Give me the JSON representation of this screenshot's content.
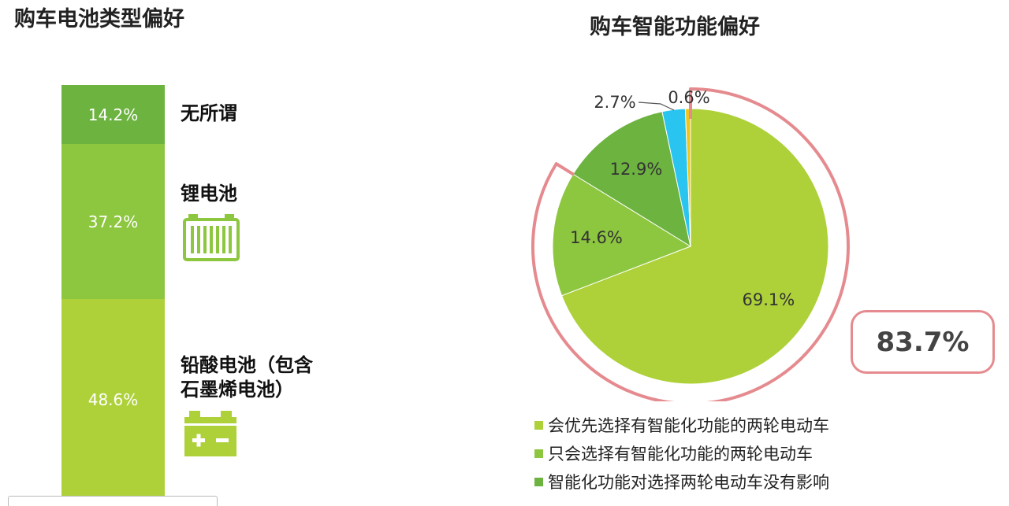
{
  "left_title": "购车电池类型偏好",
  "right_title": "购车智能功能偏好",
  "colors": {
    "dark_green": "#6db340",
    "mid_green": "#8dc63f",
    "light_green": "#aed13a",
    "cyan": "#29c4ef",
    "yellow": "#f0c419",
    "outline": "#e58b8f"
  },
  "battery": {
    "segments": [
      {
        "value_label": "14.2%",
        "label": "无所谓",
        "color": "#6db340"
      },
      {
        "value_label": "37.2%",
        "label": "锂电池",
        "icon": "lithium-battery-icon",
        "color": "#8dc63f"
      },
      {
        "value_label": "48.6%",
        "label_line1": "铅酸电池（包含",
        "label_line2": "石墨烯电池）",
        "icon": "lead-acid-battery-icon",
        "color": "#aed13a"
      }
    ]
  },
  "chart_data": [
    {
      "type": "bar",
      "title": "购车电池类型偏好",
      "categories": [
        "无所谓",
        "锂电池",
        "铅酸电池（包含石墨烯电池）"
      ],
      "values": [
        14.2,
        37.2,
        48.6
      ],
      "stacked": true
    },
    {
      "type": "pie",
      "title": "购车智能功能偏好",
      "labels": [
        "会优先选择有智能化功能的两轮电动车",
        "只会选择有智能化功能的两轮电动车",
        "智能化功能对选择两轮电动车没有影响",
        "",
        ""
      ],
      "values": [
        69.1,
        14.6,
        12.9,
        2.7,
        0.6
      ],
      "value_labels": [
        "69.1%",
        "14.6%",
        "12.9%",
        "2.7%",
        "0.6%"
      ],
      "colors": [
        "#aed13a",
        "#8dc63f",
        "#6db340",
        "#29c4ef",
        "#f0c419"
      ],
      "highlight_total": "83.7%",
      "legend_position": "bottom"
    }
  ],
  "legend": [
    {
      "label": "会优先选择有智能化功能的两轮电动车",
      "color": "#aed13a"
    },
    {
      "label": "只会选择有智能化功能的两轮电动车",
      "color": "#8dc63f"
    },
    {
      "label": "智能化功能对选择两轮电动车没有影响",
      "color": "#6db340"
    }
  ]
}
